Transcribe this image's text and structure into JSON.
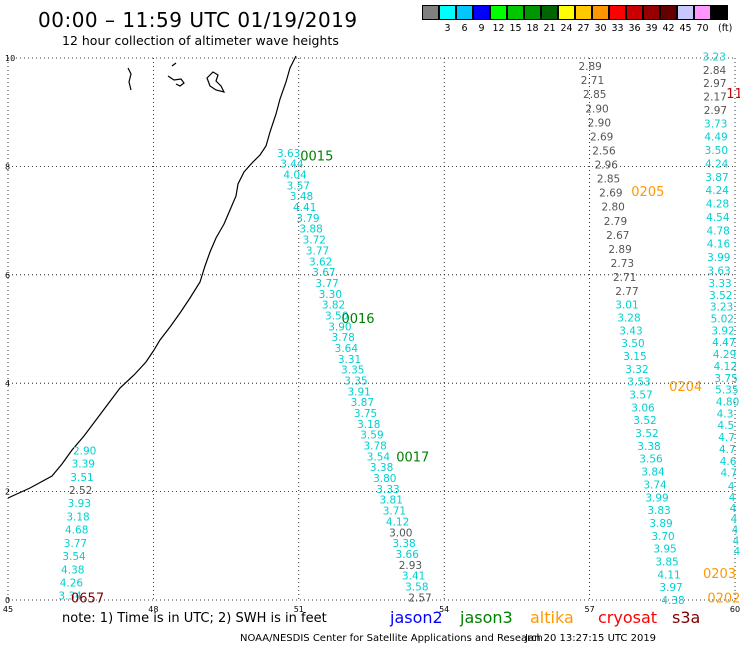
{
  "header": {
    "title": "00:00 – 11:59 UTC 01/19/2019",
    "subtitle": "12 hour collection of altimeter wave heights"
  },
  "color_scale": {
    "unit": "(ft)",
    "swatches": [
      {
        "label": "",
        "color": "#808080"
      },
      {
        "label": "3",
        "color": "#00ffff"
      },
      {
        "label": "6",
        "color": "#00c8ff"
      },
      {
        "label": "9",
        "color": "#0000ff"
      },
      {
        "label": "12",
        "color": "#00ff00"
      },
      {
        "label": "15",
        "color": "#00c800"
      },
      {
        "label": "18",
        "color": "#009600"
      },
      {
        "label": "21",
        "color": "#006400"
      },
      {
        "label": "24",
        "color": "#ffff00"
      },
      {
        "label": "27",
        "color": "#ffc800"
      },
      {
        "label": "30",
        "color": "#ff9600"
      },
      {
        "label": "33",
        "color": "#ff0000"
      },
      {
        "label": "36",
        "color": "#c80000"
      },
      {
        "label": "39",
        "color": "#960000"
      },
      {
        "label": "42",
        "color": "#640000"
      },
      {
        "label": "45",
        "color": "#c8c8ff"
      },
      {
        "label": "70",
        "color": "#ff96ff"
      },
      {
        "label": "",
        "color": "#000000"
      }
    ]
  },
  "map": {
    "lon_ticks": [
      "45",
      "48",
      "51",
      "54",
      "57",
      "60"
    ],
    "lat_ticks": [
      "0",
      "2",
      "4",
      "6",
      "8",
      "10"
    ],
    "colors": {
      "gray": "#555555",
      "cyan": "#00d0d0",
      "green": "#008000",
      "orange": "#ff9900",
      "red": "#cc0000",
      "maroon": "#800000"
    },
    "pass_labels": [
      {
        "text": "0015",
        "lon": 51.03,
        "lat": 8.2,
        "color": "green"
      },
      {
        "text": "0016",
        "lon": 51.88,
        "lat": 5.2,
        "color": "green"
      },
      {
        "text": "0017",
        "lon": 53.01,
        "lat": 2.65,
        "color": "green"
      },
      {
        "text": "0205",
        "lon": 57.86,
        "lat": 7.55,
        "color": "orange"
      },
      {
        "text": "0204",
        "lon": 58.64,
        "lat": 3.95,
        "color": "orange"
      },
      {
        "text": "0203",
        "lon": 59.34,
        "lat": 0.5,
        "color": "orange"
      },
      {
        "text": "0202",
        "lon": 59.43,
        "lat": 0.05,
        "color": "orange"
      },
      {
        "text": "0657",
        "lon": 46.3,
        "lat": 0.05,
        "color": "maroon"
      },
      {
        "text": "11",
        "lon": 59.82,
        "lat": 9.35,
        "color": "red"
      }
    ],
    "tracks": [
      {
        "start": [
          46.34,
          2.76
        ],
        "end": [
          46.04,
          0.08
        ],
        "values": [
          {
            "v": "2.90",
            "c": "cyan"
          },
          {
            "v": "3.39",
            "c": "cyan"
          },
          {
            "v": "3.51",
            "c": "cyan"
          },
          {
            "v": "2.52",
            "c": "gray"
          },
          {
            "v": "3.93",
            "c": "cyan"
          },
          {
            "v": "3.18",
            "c": "cyan"
          },
          {
            "v": "4.68",
            "c": "cyan"
          },
          {
            "v": "3.77",
            "c": "cyan"
          },
          {
            "v": "3.54",
            "c": "cyan"
          },
          {
            "v": "4.38",
            "c": "cyan"
          },
          {
            "v": "4.26",
            "c": "cyan"
          },
          {
            "v": "3.34",
            "c": "cyan"
          }
        ]
      },
      {
        "start": [
          50.55,
          8.25
        ],
        "end": [
          53.26,
          0.05
        ],
        "values": [
          {
            "v": "3.63",
            "c": "cyan"
          },
          {
            "v": "3.44",
            "c": "cyan"
          },
          {
            "v": "4.04",
            "c": "cyan"
          },
          {
            "v": "3.57",
            "c": "cyan"
          },
          {
            "v": "3.48",
            "c": "cyan"
          },
          {
            "v": "4.41",
            "c": "cyan"
          },
          {
            "v": "3.79",
            "c": "cyan"
          },
          {
            "v": "3.88",
            "c": "cyan"
          },
          {
            "v": "3.72",
            "c": "cyan"
          },
          {
            "v": "3.77",
            "c": "cyan"
          },
          {
            "v": "3.62",
            "c": "cyan"
          },
          {
            "v": "3.67",
            "c": "cyan"
          },
          {
            "v": "3.77",
            "c": "cyan"
          },
          {
            "v": "3.30",
            "c": "cyan"
          },
          {
            "v": "3.82",
            "c": "cyan"
          },
          {
            "v": "3.50",
            "c": "cyan"
          },
          {
            "v": "3.90",
            "c": "cyan"
          },
          {
            "v": "3.78",
            "c": "cyan"
          },
          {
            "v": "3.64",
            "c": "cyan"
          },
          {
            "v": "3.31",
            "c": "cyan"
          },
          {
            "v": "3.35",
            "c": "cyan"
          },
          {
            "v": "3.35",
            "c": "cyan"
          },
          {
            "v": "3.91",
            "c": "cyan"
          },
          {
            "v": "3.87",
            "c": "cyan"
          },
          {
            "v": "3.75",
            "c": "cyan"
          },
          {
            "v": "3.18",
            "c": "cyan"
          },
          {
            "v": "3.59",
            "c": "cyan"
          },
          {
            "v": "3.78",
            "c": "cyan"
          },
          {
            "v": "3.54",
            "c": "cyan"
          },
          {
            "v": "3.38",
            "c": "cyan"
          },
          {
            "v": "3.80",
            "c": "cyan"
          },
          {
            "v": "3.33",
            "c": "cyan"
          },
          {
            "v": "3.81",
            "c": "cyan"
          },
          {
            "v": "3.71",
            "c": "cyan"
          },
          {
            "v": "4.12",
            "c": "cyan"
          },
          {
            "v": "3.00",
            "c": "gray"
          },
          {
            "v": "3.38",
            "c": "cyan"
          },
          {
            "v": "3.66",
            "c": "cyan"
          },
          {
            "v": "2.93",
            "c": "gray"
          },
          {
            "v": "3.41",
            "c": "cyan"
          },
          {
            "v": "3.58",
            "c": "cyan"
          },
          {
            "v": "2.57",
            "c": "gray"
          }
        ]
      },
      {
        "start": [
          56.77,
          9.85
        ],
        "end": [
          57.53,
          5.7
        ],
        "values": [
          {
            "v": "2.89",
            "c": "gray"
          },
          {
            "v": "2.71",
            "c": "gray"
          },
          {
            "v": "2.85",
            "c": "gray"
          },
          {
            "v": "2.90",
            "c": "gray"
          },
          {
            "v": "2.90",
            "c": "gray"
          },
          {
            "v": "2.69",
            "c": "gray"
          },
          {
            "v": "2.56",
            "c": "gray"
          },
          {
            "v": "2.96",
            "c": "gray"
          },
          {
            "v": "2.85",
            "c": "gray"
          },
          {
            "v": "2.69",
            "c": "gray"
          },
          {
            "v": "2.80",
            "c": "gray"
          },
          {
            "v": "2.79",
            "c": "gray"
          },
          {
            "v": "2.67",
            "c": "gray"
          },
          {
            "v": "2.89",
            "c": "gray"
          },
          {
            "v": "2.73",
            "c": "gray"
          },
          {
            "v": "2.71",
            "c": "gray"
          },
          {
            "v": "2.77",
            "c": "gray"
          }
        ]
      },
      {
        "start": [
          57.53,
          5.45
        ],
        "end": [
          58.48,
          0.0
        ],
        "values": [
          {
            "v": "3.01",
            "c": "cyan"
          },
          {
            "v": "3.28",
            "c": "cyan"
          },
          {
            "v": "3.43",
            "c": "cyan"
          },
          {
            "v": "3.50",
            "c": "cyan"
          },
          {
            "v": "3.15",
            "c": "cyan"
          },
          {
            "v": "3.32",
            "c": "cyan"
          },
          {
            "v": "3.53",
            "c": "cyan"
          },
          {
            "v": "3.57",
            "c": "cyan"
          },
          {
            "v": "3.06",
            "c": "cyan"
          },
          {
            "v": "3.52",
            "c": "cyan"
          },
          {
            "v": "3.52",
            "c": "cyan"
          },
          {
            "v": "3.38",
            "c": "cyan"
          },
          {
            "v": "3.56",
            "c": "cyan"
          },
          {
            "v": "3.84",
            "c": "cyan"
          },
          {
            "v": "3.74",
            "c": "cyan"
          },
          {
            "v": "3.99",
            "c": "cyan"
          },
          {
            "v": "3.83",
            "c": "cyan"
          },
          {
            "v": "3.89",
            "c": "cyan"
          },
          {
            "v": "3.70",
            "c": "cyan"
          },
          {
            "v": "3.95",
            "c": "cyan"
          },
          {
            "v": "3.85",
            "c": "cyan"
          },
          {
            "v": "4.11",
            "c": "cyan"
          },
          {
            "v": "3.97",
            "c": "cyan"
          },
          {
            "v": "4.38",
            "c": "cyan"
          }
        ]
      },
      {
        "start": [
          59.33,
          10.03
        ],
        "end": [
          59.43,
          6.08
        ],
        "values": [
          {
            "v": "3.23",
            "c": "cyan"
          },
          {
            "v": "2.84",
            "c": "gray"
          },
          {
            "v": "2.97",
            "c": "gray"
          },
          {
            "v": "2.17",
            "c": "gray"
          },
          {
            "v": "2.97",
            "c": "gray"
          },
          {
            "v": "3.73",
            "c": "cyan"
          },
          {
            "v": "4.49",
            "c": "cyan"
          },
          {
            "v": "3.50",
            "c": "cyan"
          },
          {
            "v": "4.24",
            "c": "cyan"
          },
          {
            "v": "3.87",
            "c": "cyan"
          },
          {
            "v": "4.24",
            "c": "cyan"
          },
          {
            "v": "4.28",
            "c": "cyan"
          },
          {
            "v": "4.54",
            "c": "cyan"
          },
          {
            "v": "4.78",
            "c": "cyan"
          },
          {
            "v": "4.16",
            "c": "cyan"
          },
          {
            "v": "3.99",
            "c": "cyan"
          },
          {
            "v": "3.63",
            "c": "cyan"
          }
        ]
      },
      {
        "start": [
          59.45,
          5.85
        ],
        "end": [
          59.7,
          2.35
        ],
        "values": [
          {
            "v": "3.33",
            "c": "cyan"
          },
          {
            "v": "3.52",
            "c": "cyan"
          },
          {
            "v": "3.23",
            "c": "cyan"
          },
          {
            "v": "5.02",
            "c": "cyan"
          },
          {
            "v": "3.92",
            "c": "cyan"
          },
          {
            "v": "4.47",
            "c": "cyan"
          },
          {
            "v": "4.29",
            "c": "cyan"
          },
          {
            "v": "4.12",
            "c": "cyan"
          },
          {
            "v": "3.75",
            "c": "cyan"
          },
          {
            "v": "5.35",
            "c": "cyan"
          },
          {
            "v": "4.80",
            "c": "cyan"
          },
          {
            "v": "4.3",
            "c": "cyan"
          },
          {
            "v": "4.5",
            "c": "cyan"
          },
          {
            "v": "4.7",
            "c": "cyan"
          },
          {
            "v": "4.7",
            "c": "cyan"
          },
          {
            "v": "4.6",
            "c": "cyan"
          },
          {
            "v": "4.7",
            "c": "cyan"
          }
        ]
      },
      {
        "start": [
          59.85,
          2.1
        ],
        "end": [
          59.97,
          0.9
        ],
        "values": [
          {
            "v": "4",
            "c": "cyan"
          },
          {
            "v": "4",
            "c": "cyan"
          },
          {
            "v": "4",
            "c": "cyan"
          },
          {
            "v": "4",
            "c": "cyan"
          },
          {
            "v": "4",
            "c": "cyan"
          },
          {
            "v": "4",
            "c": "cyan"
          },
          {
            "v": "4",
            "c": "cyan"
          }
        ]
      }
    ]
  },
  "footer": {
    "note": "note:  1) Time is in UTC;  2) SWH is in feet",
    "legend": [
      {
        "label": "jason2",
        "color": "#0000ff"
      },
      {
        "label": "jason3",
        "color": "#008000"
      },
      {
        "label": "altika",
        "color": "#ff9900"
      },
      {
        "label": "cryosat",
        "color": "#ff0000"
      },
      {
        "label": "s3a",
        "color": "#800000"
      }
    ],
    "credit": "NOAA/NESDIS Center for Satellite Applications and Research",
    "timestamp": "Jan 20 13:27:15 UTC 2019"
  }
}
